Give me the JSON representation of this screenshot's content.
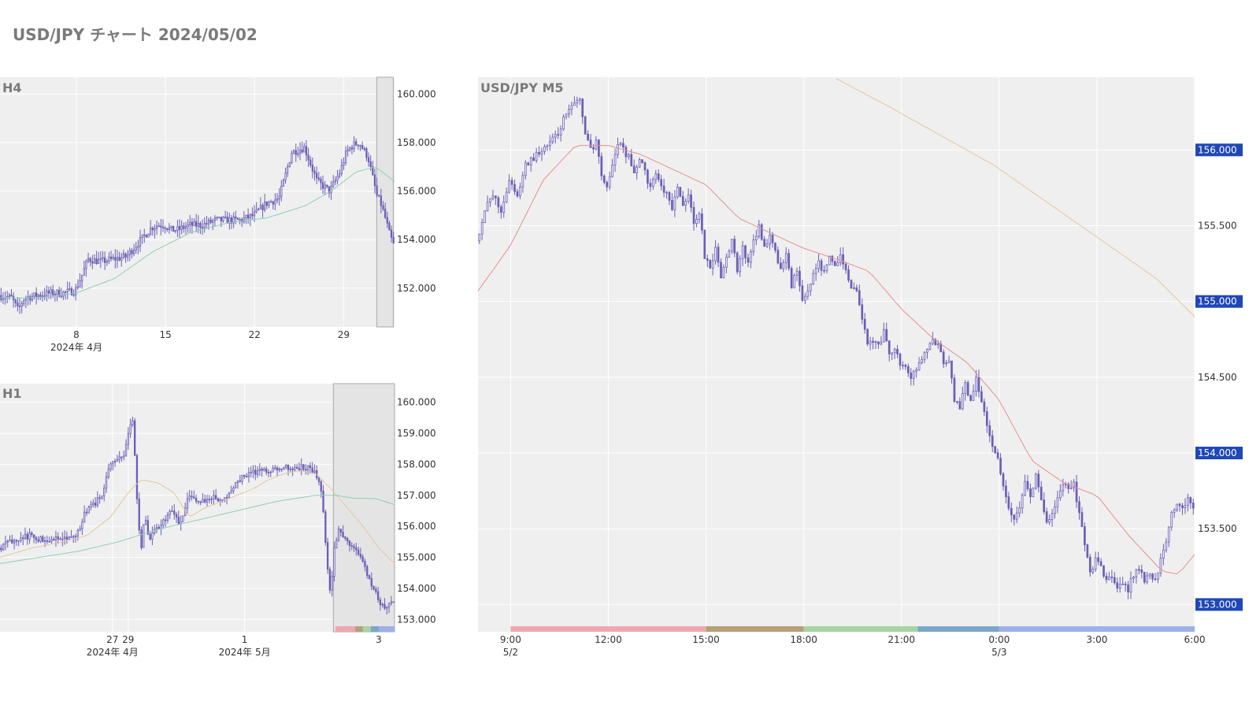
{
  "title": "USD/JPY チャート 2024/05/02",
  "colors": {
    "panel_bg": "#efefef",
    "grid": "#ffffff",
    "candle": "#6a5fb5",
    "ma_red": "#e8908f",
    "ma_orange": "#e6c79a",
    "ma_green": "#8fcfb0",
    "badge": "#1f47b8",
    "axis_text": "#333333"
  },
  "chart_data": [
    {
      "type": "candlestick",
      "title": "H4",
      "ylim": [
        150.4,
        160.7
      ],
      "yticks": [
        "160.000",
        "158.000",
        "156.000",
        "154.000",
        "152.000"
      ],
      "ytick_values": [
        160,
        158,
        156,
        154,
        152
      ],
      "x_range": [
        0,
        31
      ],
      "xticks": [
        {
          "pos": 6,
          "label": "8",
          "sub": "2024年 4月"
        },
        {
          "pos": 13,
          "label": "15",
          "sub": ""
        },
        {
          "pos": 20,
          "label": "22",
          "sub": ""
        },
        {
          "pos": 27,
          "label": "29",
          "sub": ""
        }
      ],
      "highlight": [
        29.6,
        30.9
      ],
      "series": [
        {
          "style": "close_path",
          "x": [
            0,
            1,
            1.5,
            2,
            3,
            4,
            5,
            6,
            6.5,
            7,
            8,
            9,
            10,
            11,
            12,
            12.5,
            13,
            13.5,
            14,
            15,
            16,
            17,
            18,
            19,
            20,
            21,
            22,
            23,
            24,
            25,
            26,
            26.8,
            27.3,
            27.8,
            28.3,
            29,
            29.7,
            30,
            30.3,
            30.7,
            31
          ],
          "values": [
            151.7,
            151.6,
            151.1,
            151.6,
            151.7,
            151.8,
            151.8,
            151.9,
            152.5,
            153.2,
            153.1,
            153.2,
            153.3,
            153.9,
            154.5,
            154.6,
            154.6,
            154.4,
            154.4,
            154.6,
            154.6,
            154.8,
            154.8,
            154.8,
            155.0,
            155.5,
            155.7,
            157.6,
            157.8,
            156.4,
            156.0,
            156.8,
            157.6,
            157.9,
            158.0,
            157.4,
            155.8,
            155.5,
            155.0,
            154.2,
            153.8
          ]
        },
        {
          "style": "ma",
          "color": "ma_green",
          "x": [
            0,
            3,
            6,
            9,
            12,
            15,
            18,
            21,
            24,
            26,
            28,
            29.5,
            31
          ],
          "values": [
            151.6,
            151.6,
            151.8,
            152.4,
            153.5,
            154.3,
            154.7,
            154.9,
            155.4,
            156.0,
            156.8,
            157.0,
            156.4
          ]
        }
      ]
    },
    {
      "type": "candlestick",
      "title": "H1",
      "ylim": [
        152.6,
        160.6
      ],
      "yticks": [
        "160.000",
        "159.000",
        "158.000",
        "157.000",
        "156.000",
        "155.000",
        "154.000",
        "153.000"
      ],
      "ytick_values": [
        160,
        159,
        158,
        157,
        156,
        155,
        154,
        153
      ],
      "x_range": [
        0,
        100
      ],
      "xticks": [
        {
          "pos": 28.5,
          "label": "27",
          "sub": "2024年 4月"
        },
        {
          "pos": 32.5,
          "label": "29",
          "sub": ""
        },
        {
          "pos": 62,
          "label": "1",
          "sub": "2024年 5月"
        },
        {
          "pos": 96,
          "label": "3",
          "sub": ""
        }
      ],
      "highlight": [
        84.5,
        100
      ],
      "session_bar": [
        {
          "from": 85,
          "to": 90,
          "color": "#f0a8ae"
        },
        {
          "from": 90,
          "to": 92,
          "color": "#b5a07a"
        },
        {
          "from": 92,
          "to": 94,
          "color": "#a8d4a2"
        },
        {
          "from": 94,
          "to": 96,
          "color": "#7ba7c9"
        },
        {
          "from": 96,
          "to": 100,
          "color": "#9db0e8"
        }
      ],
      "series": [
        {
          "style": "close_path",
          "x": [
            0,
            4,
            8,
            10,
            13,
            16,
            19,
            20,
            22,
            24,
            26,
            28,
            30,
            32,
            33,
            34,
            35,
            36,
            37,
            38,
            40,
            42,
            44,
            46,
            48,
            50,
            52,
            54,
            56,
            58,
            60,
            62,
            64,
            66,
            68,
            70,
            72,
            74,
            76,
            78,
            80,
            81,
            82,
            83,
            84,
            85,
            86,
            88,
            90,
            92,
            94,
            96,
            98,
            99,
            100
          ],
          "values": [
            155.3,
            155.6,
            155.7,
            155.6,
            155.6,
            155.6,
            155.6,
            155.8,
            156.5,
            156.7,
            157.0,
            157.9,
            158.2,
            158.4,
            159.2,
            159.4,
            156.8,
            155.2,
            156.4,
            155.6,
            155.9,
            156.2,
            156.5,
            156.0,
            156.9,
            156.9,
            156.8,
            156.9,
            156.9,
            157.0,
            157.4,
            157.6,
            157.7,
            157.8,
            157.8,
            157.9,
            157.9,
            157.9,
            157.9,
            157.9,
            157.7,
            157.6,
            157.0,
            155.0,
            153.8,
            155.3,
            155.9,
            155.6,
            155.3,
            154.9,
            154.3,
            153.7,
            153.3,
            153.6,
            153.6
          ]
        },
        {
          "style": "ma",
          "color": "ma_orange",
          "x": [
            0,
            8,
            16,
            22,
            28,
            32,
            34,
            36,
            40,
            44,
            48,
            52,
            56,
            60,
            64,
            68,
            72,
            76,
            80,
            84,
            88,
            92,
            96,
            100
          ],
          "values": [
            155.0,
            155.3,
            155.5,
            155.7,
            156.3,
            157.0,
            157.3,
            157.5,
            157.4,
            157.1,
            156.3,
            156.6,
            156.8,
            157.0,
            157.2,
            157.5,
            157.7,
            157.8,
            157.7,
            157.2,
            156.6,
            156.0,
            155.3,
            154.8
          ]
        },
        {
          "style": "ma",
          "color": "ma_green",
          "x": [
            0,
            10,
            20,
            30,
            40,
            50,
            60,
            70,
            80,
            85,
            90,
            95,
            100
          ],
          "values": [
            154.8,
            155.0,
            155.2,
            155.5,
            155.9,
            156.2,
            156.5,
            156.8,
            157.0,
            157.0,
            156.9,
            156.9,
            156.7
          ]
        }
      ]
    },
    {
      "type": "candlestick",
      "title": "USD/JPY M5",
      "ylim": [
        152.82,
        156.48
      ],
      "yticks": [
        "156.000",
        "155.500",
        "155.000",
        "154.500",
        "154.000",
        "153.500",
        "153.000"
      ],
      "ytick_values": [
        156.0,
        155.5,
        155.0,
        154.5,
        154.0,
        153.5,
        153.0
      ],
      "badge_ticks": [
        "156.000",
        "155.000",
        "154.000",
        "153.000"
      ],
      "x_range": [
        0,
        264
      ],
      "xticks": [
        {
          "pos": 12,
          "label": "9:00",
          "sub": "5/2"
        },
        {
          "pos": 48,
          "label": "12:00",
          "sub": ""
        },
        {
          "pos": 84,
          "label": "15:00",
          "sub": ""
        },
        {
          "pos": 120,
          "label": "18:00",
          "sub": ""
        },
        {
          "pos": 156,
          "label": "21:00",
          "sub": ""
        },
        {
          "pos": 192,
          "label": "0:00",
          "sub": "5/3"
        },
        {
          "pos": 228,
          "label": "3:00",
          "sub": ""
        },
        {
          "pos": 264,
          "label": "6:00",
          "sub": ""
        }
      ],
      "session_bar": [
        {
          "from": 12,
          "to": 84,
          "color": "#f0a8ae"
        },
        {
          "from": 84,
          "to": 120,
          "color": "#b5a07a"
        },
        {
          "from": 120,
          "to": 162,
          "color": "#a8d4a2"
        },
        {
          "from": 162,
          "to": 192,
          "color": "#7ba7c9"
        },
        {
          "from": 192,
          "to": 264,
          "color": "#9db0e8"
        }
      ],
      "series": [
        {
          "style": "close_path",
          "x": [
            0,
            3,
            6,
            9,
            12,
            15,
            18,
            21,
            24,
            27,
            30,
            32,
            34,
            36,
            38,
            40,
            42,
            44,
            46,
            48,
            50,
            52,
            54,
            56,
            58,
            60,
            62,
            64,
            66,
            68,
            70,
            72,
            74,
            76,
            78,
            80,
            82,
            84,
            86,
            88,
            90,
            92,
            94,
            96,
            98,
            100,
            102,
            104,
            106,
            108,
            110,
            112,
            114,
            116,
            118,
            120,
            122,
            124,
            126,
            128,
            130,
            132,
            134,
            136,
            138,
            140,
            142,
            144,
            146,
            148,
            150,
            152,
            154,
            156,
            158,
            160,
            162,
            164,
            166,
            168,
            170,
            172,
            174,
            176,
            178,
            180,
            182,
            184,
            186,
            188,
            190,
            192,
            194,
            196,
            198,
            200,
            202,
            204,
            206,
            208,
            210,
            212,
            214,
            216,
            218,
            220,
            222,
            224,
            226,
            228,
            230,
            232,
            234,
            236,
            238,
            240,
            242,
            244,
            246,
            248,
            250,
            252,
            254,
            256,
            258,
            260,
            262,
            264
          ],
          "values": [
            155.4,
            155.6,
            155.7,
            155.6,
            155.8,
            155.7,
            155.9,
            155.95,
            156.0,
            156.05,
            156.1,
            156.2,
            156.25,
            156.3,
            156.35,
            156.1,
            156.0,
            156.05,
            155.85,
            155.75,
            155.9,
            156.05,
            156.0,
            155.95,
            155.85,
            155.95,
            155.85,
            155.75,
            155.85,
            155.75,
            155.7,
            155.6,
            155.75,
            155.65,
            155.7,
            155.5,
            155.6,
            155.3,
            155.2,
            155.35,
            155.15,
            155.3,
            155.4,
            155.2,
            155.35,
            155.25,
            155.4,
            155.5,
            155.35,
            155.45,
            155.35,
            155.2,
            155.3,
            155.1,
            155.2,
            155.0,
            155.05,
            155.2,
            155.25,
            155.2,
            155.3,
            155.25,
            155.3,
            155.2,
            155.1,
            155.05,
            154.9,
            154.7,
            154.75,
            154.7,
            154.8,
            154.65,
            154.7,
            154.6,
            154.55,
            154.5,
            154.55,
            154.6,
            154.7,
            154.75,
            154.7,
            154.6,
            154.6,
            154.35,
            154.3,
            154.45,
            154.35,
            154.5,
            154.35,
            154.2,
            154.05,
            153.95,
            153.8,
            153.65,
            153.55,
            153.65,
            153.8,
            153.7,
            153.85,
            153.7,
            153.55,
            153.6,
            153.7,
            153.8,
            153.75,
            153.8,
            153.6,
            153.4,
            153.2,
            153.3,
            153.25,
            153.15,
            153.2,
            153.1,
            153.15,
            153.1,
            153.2,
            153.25,
            153.15,
            153.2,
            153.15,
            153.3,
            153.4,
            153.6,
            153.65,
            153.65,
            153.7,
            153.65
          ]
        },
        {
          "style": "ma",
          "color": "ma_red",
          "x": [
            0,
            12,
            24,
            36,
            48,
            60,
            72,
            84,
            96,
            108,
            120,
            132,
            144,
            156,
            168,
            180,
            192,
            204,
            216,
            228,
            240,
            252,
            258,
            264
          ],
          "values": [
            155.07,
            155.37,
            155.8,
            156.03,
            156.03,
            155.97,
            155.87,
            155.77,
            155.55,
            155.45,
            155.35,
            155.28,
            155.2,
            154.95,
            154.75,
            154.6,
            154.35,
            153.95,
            153.8,
            153.72,
            153.45,
            153.22,
            153.2,
            153.33
          ]
        },
        {
          "style": "ma",
          "color": "ma_orange",
          "x": [
            132,
            150,
            170,
            190,
            210,
            230,
            250,
            264
          ],
          "values": [
            156.47,
            156.3,
            156.1,
            155.9,
            155.65,
            155.4,
            155.15,
            154.9
          ]
        }
      ]
    }
  ]
}
